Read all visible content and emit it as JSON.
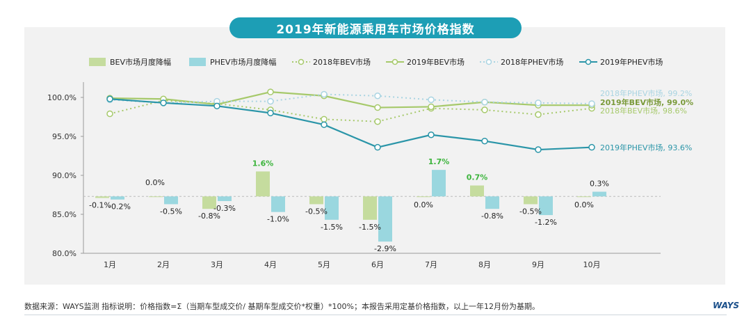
{
  "chart_data": {
    "type": "bar+line",
    "title": "2019年新能源乘用车市场价格指数",
    "categories": [
      "1月",
      "2月",
      "3月",
      "4月",
      "5月",
      "6月",
      "7月",
      "8月",
      "9月",
      "10月"
    ],
    "y_ticks": [
      "100.0%",
      "95.0%",
      "90.0%",
      "85.0%",
      "80.0%"
    ],
    "ylim": [
      80,
      102
    ],
    "bar_baseline": 87.3,
    "bar_scale": 2,
    "bars": [
      {
        "name": "BEV市场月度降幅",
        "color": "#c5dc9e",
        "values": [
          -0.1,
          0.0,
          -0.8,
          1.6,
          -0.5,
          -1.5,
          0.0,
          0.7,
          -0.5,
          0.0
        ],
        "labels": [
          "-0.1%",
          "0.0%",
          "-0.8%",
          "1.6%",
          "-0.5%",
          "-1.5%",
          "0.0%",
          "0.7%",
          "-0.5%",
          "0.0%"
        ]
      },
      {
        "name": "PHEV市场月度降幅",
        "color": "#9ad7df",
        "values": [
          -0.2,
          -0.5,
          -0.3,
          -1.0,
          -1.5,
          -2.9,
          1.7,
          -0.8,
          -1.2,
          0.3
        ],
        "labels": [
          "-0.2%",
          "-0.5%",
          "-0.3%",
          "-1.0%",
          "-1.5%",
          "-2.9%",
          "1.7%",
          "-0.8%",
          "-1.2%",
          "0.3%"
        ]
      }
    ],
    "lines": [
      {
        "name": "2018年BEV市场",
        "color": "#a6c96a",
        "dashed": true,
        "values": [
          97.9,
          99.6,
          99.2,
          98.4,
          97.2,
          96.9,
          98.6,
          98.4,
          97.8,
          98.6
        ],
        "end_label": "2018年BEV市场, 98.6%"
      },
      {
        "name": "2019年BEV市场",
        "color": "#a6c96a",
        "dashed": false,
        "values": [
          99.9,
          99.8,
          99.1,
          100.7,
          100.2,
          98.7,
          98.8,
          99.4,
          99.0,
          99.0
        ],
        "end_label": "2019年BEV市场, 99.0%"
      },
      {
        "name": "2018年PHEV市场",
        "color": "#a9d4e2",
        "dashed": true,
        "values": [
          99.7,
          99.3,
          99.5,
          99.5,
          100.4,
          100.2,
          99.7,
          99.4,
          99.3,
          99.2
        ],
        "end_label": "2018年PHEV市场, 99.2%"
      },
      {
        "name": "2019年PHEV市场",
        "color": "#2a95a8",
        "dashed": false,
        "values": [
          99.8,
          99.3,
          98.9,
          98.0,
          96.5,
          93.6,
          95.2,
          94.4,
          93.3,
          93.6
        ],
        "end_label": "2019年PHEV市场, 93.6%"
      }
    ]
  },
  "footer": {
    "text": "数据来源：WAYS监测   指标说明：价格指数=Σ（当期车型成交价/ 基期车型成交价*权重）*100%；本报告采用定基价格指数，以上一年12月份为基期。",
    "logo": "WAYS"
  }
}
